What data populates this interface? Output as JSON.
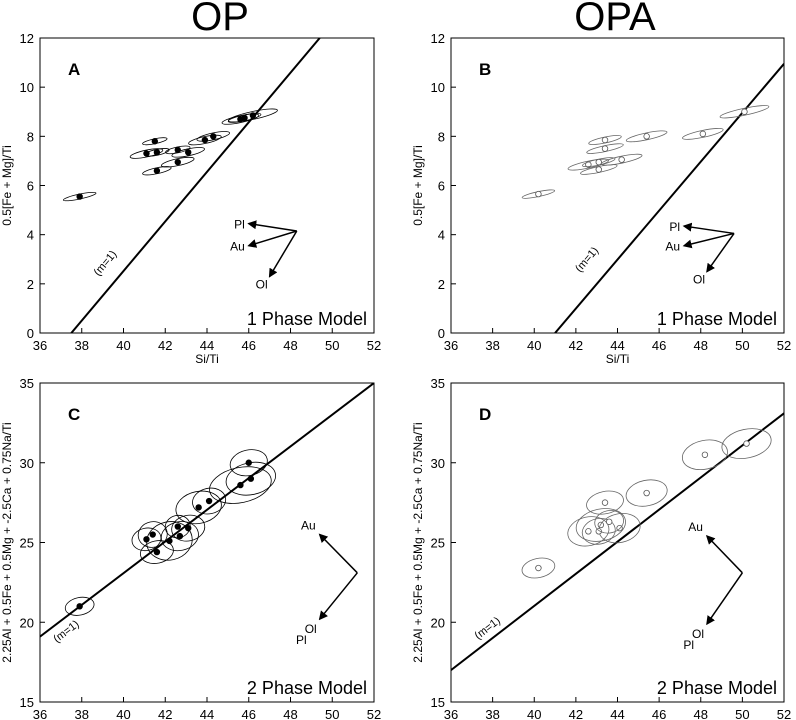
{
  "titles": {
    "left": "OP",
    "right": "OPA"
  },
  "chart_data": [
    {
      "id": "A",
      "type": "scatter",
      "label": "A",
      "model_label": "1 Phase Model",
      "xlabel": "Si/Ti",
      "ylabel": "0.5[Fe + Mg]/Ti",
      "xlim": [
        36,
        52
      ],
      "ylim": [
        0,
        12
      ],
      "xticks": [
        36,
        38,
        40,
        42,
        44,
        46,
        48,
        50,
        52
      ],
      "yticks": [
        0,
        2,
        4,
        6,
        8,
        10,
        12
      ],
      "filled": true,
      "points": [
        {
          "x": 37.9,
          "y": 5.55,
          "sx": 0.8,
          "sy": 0.1
        },
        {
          "x": 41.5,
          "y": 7.8,
          "sx": 0.6,
          "sy": 0.1
        },
        {
          "x": 41.1,
          "y": 7.3,
          "sx": 0.8,
          "sy": 0.14
        },
        {
          "x": 41.6,
          "y": 7.35,
          "sx": 0.6,
          "sy": 0.12
        },
        {
          "x": 42.6,
          "y": 7.45,
          "sx": 0.6,
          "sy": 0.12
        },
        {
          "x": 43.1,
          "y": 7.35,
          "sx": 0.8,
          "sy": 0.14
        },
        {
          "x": 42.6,
          "y": 6.95,
          "sx": 0.8,
          "sy": 0.14
        },
        {
          "x": 41.6,
          "y": 6.6,
          "sx": 0.7,
          "sy": 0.12
        },
        {
          "x": 43.9,
          "y": 7.85,
          "sx": 0.8,
          "sy": 0.14
        },
        {
          "x": 44.3,
          "y": 8.0,
          "sx": 0.8,
          "sy": 0.14
        },
        {
          "x": 45.6,
          "y": 8.7,
          "sx": 0.9,
          "sy": 0.14
        },
        {
          "x": 45.8,
          "y": 8.75,
          "sx": 0.8,
          "sy": 0.12
        },
        {
          "x": 46.2,
          "y": 8.85,
          "sx": 1.2,
          "sy": 0.16
        }
      ],
      "line": {
        "x": [
          37.5,
          49.4
        ],
        "y": [
          0,
          12
        ],
        "label": "(m=1)",
        "label_x": 38.8,
        "label_y": 2.3
      },
      "vectors": {
        "origin": {
          "x": 48.3,
          "y": 4.15
        },
        "items": [
          {
            "label": "Pl",
            "to": {
              "x": 46.0,
              "y": 4.45
            }
          },
          {
            "label": "Au",
            "to": {
              "x": 46.0,
              "y": 3.55
            }
          },
          {
            "label": "Ol",
            "to": {
              "x": 47.0,
              "y": 2.3
            }
          }
        ]
      }
    },
    {
      "id": "B",
      "type": "scatter",
      "label": "B",
      "model_label": "1 Phase Model",
      "xlabel": "Si/Ti",
      "ylabel": "0.5[Fe + Mg]/Ti",
      "xlim": [
        36,
        52
      ],
      "ylim": [
        0,
        12
      ],
      "xticks": [
        36,
        38,
        40,
        42,
        44,
        46,
        48,
        50,
        52
      ],
      "yticks": [
        0,
        2,
        4,
        6,
        8,
        10,
        12
      ],
      "filled": false,
      "points": [
        {
          "x": 40.2,
          "y": 5.65,
          "sx": 0.8,
          "sy": 0.1
        },
        {
          "x": 43.4,
          "y": 7.85,
          "sx": 0.8,
          "sy": 0.12
        },
        {
          "x": 45.4,
          "y": 8.0,
          "sx": 1.0,
          "sy": 0.14
        },
        {
          "x": 43.4,
          "y": 7.5,
          "sx": 0.9,
          "sy": 0.12
        },
        {
          "x": 42.6,
          "y": 6.85,
          "sx": 1.0,
          "sy": 0.14
        },
        {
          "x": 43.1,
          "y": 6.95,
          "sx": 0.8,
          "sy": 0.12
        },
        {
          "x": 44.2,
          "y": 7.05,
          "sx": 1.0,
          "sy": 0.14
        },
        {
          "x": 43.1,
          "y": 6.65,
          "sx": 0.9,
          "sy": 0.12
        },
        {
          "x": 48.1,
          "y": 8.1,
          "sx": 1.0,
          "sy": 0.14
        },
        {
          "x": 50.1,
          "y": 9.0,
          "sx": 1.2,
          "sy": 0.14
        }
      ],
      "line": {
        "x": [
          41.0,
          52.0
        ],
        "y": [
          0,
          10.95
        ],
        "label": "(m=1)",
        "label_x": 42.2,
        "label_y": 2.45
      },
      "vectors": {
        "origin": {
          "x": 49.6,
          "y": 4.05
        },
        "items": [
          {
            "label": "Pl",
            "to": {
              "x": 47.2,
              "y": 4.35
            }
          },
          {
            "label": "Au",
            "to": {
              "x": 47.2,
              "y": 3.55
            }
          },
          {
            "label": "Ol",
            "to": {
              "x": 48.3,
              "y": 2.5
            }
          }
        ]
      }
    },
    {
      "id": "C",
      "type": "scatter",
      "label": "C",
      "model_label": "2 Phase Model",
      "xlabel": "Si/Ti",
      "ylabel": "2.25Al + 0.5Fe + 0.5Mg + -2.5Ca + 0.75Na/Ti",
      "xlim": [
        36,
        52
      ],
      "ylim": [
        15,
        35
      ],
      "xticks": [
        36,
        38,
        40,
        42,
        44,
        46,
        48,
        50,
        52
      ],
      "yticks": [
        15,
        20,
        25,
        30,
        35
      ],
      "filled": true,
      "points": [
        {
          "x": 37.9,
          "y": 21.0,
          "sx": 0.7,
          "sy": 0.55
        },
        {
          "x": 41.1,
          "y": 25.2,
          "sx": 0.7,
          "sy": 0.7
        },
        {
          "x": 41.4,
          "y": 25.5,
          "sx": 0.7,
          "sy": 0.8
        },
        {
          "x": 42.2,
          "y": 25.1,
          "sx": 1.1,
          "sy": 1.2
        },
        {
          "x": 42.6,
          "y": 26.0,
          "sx": 0.6,
          "sy": 0.7
        },
        {
          "x": 41.6,
          "y": 24.4,
          "sx": 0.8,
          "sy": 0.7
        },
        {
          "x": 42.7,
          "y": 25.4,
          "sx": 0.9,
          "sy": 0.9
        },
        {
          "x": 43.1,
          "y": 25.9,
          "sx": 0.8,
          "sy": 0.8
        },
        {
          "x": 43.6,
          "y": 27.2,
          "sx": 1.1,
          "sy": 1.0
        },
        {
          "x": 44.1,
          "y": 27.6,
          "sx": 0.8,
          "sy": 0.8
        },
        {
          "x": 45.6,
          "y": 28.6,
          "sx": 1.5,
          "sy": 1.1
        },
        {
          "x": 46.1,
          "y": 29.0,
          "sx": 1.2,
          "sy": 1.0
        },
        {
          "x": 46.0,
          "y": 30.0,
          "sx": 0.9,
          "sy": 0.8
        }
      ],
      "line": {
        "x": [
          36.0,
          52.0
        ],
        "y": [
          19.1,
          35.0
        ],
        "label": "(m=1)",
        "label_x": 36.8,
        "label_y": 18.7
      },
      "vectors": {
        "origin": {
          "x": 51.2,
          "y": 23.1
        },
        "items": [
          {
            "label": "Au",
            "to": {
              "x": 49.4,
              "y": 25.5
            }
          },
          {
            "label": "Ol",
            "to": {
              "x": 49.4,
              "y": 20.2
            }
          }
        ],
        "extra_label": "Pl"
      }
    },
    {
      "id": "D",
      "type": "scatter",
      "label": "D",
      "model_label": "2 Phase Model",
      "xlabel": "Si/Ti",
      "ylabel": "2.25Al + 0.5Fe + 0.5Mg + -2.5Ca + 0.75Na/Ti",
      "xlim": [
        36,
        52
      ],
      "ylim": [
        15,
        35
      ],
      "xticks": [
        36,
        38,
        40,
        42,
        44,
        46,
        48,
        50,
        52
      ],
      "yticks": [
        15,
        20,
        25,
        30,
        35
      ],
      "filled": false,
      "points": [
        {
          "x": 40.2,
          "y": 23.4,
          "sx": 0.8,
          "sy": 0.6
        },
        {
          "x": 43.4,
          "y": 27.5,
          "sx": 0.9,
          "sy": 0.7
        },
        {
          "x": 45.4,
          "y": 28.1,
          "sx": 1.0,
          "sy": 0.8
        },
        {
          "x": 42.6,
          "y": 25.7,
          "sx": 1.0,
          "sy": 0.9
        },
        {
          "x": 43.2,
          "y": 26.1,
          "sx": 1.2,
          "sy": 1.0
        },
        {
          "x": 44.1,
          "y": 25.9,
          "sx": 1.0,
          "sy": 0.9
        },
        {
          "x": 43.1,
          "y": 25.7,
          "sx": 0.8,
          "sy": 0.8
        },
        {
          "x": 43.6,
          "y": 26.3,
          "sx": 0.7,
          "sy": 0.7
        },
        {
          "x": 48.2,
          "y": 30.5,
          "sx": 1.1,
          "sy": 0.9
        },
        {
          "x": 50.2,
          "y": 31.2,
          "sx": 1.2,
          "sy": 0.9
        }
      ],
      "line": {
        "x": [
          36.0,
          52.0
        ],
        "y": [
          17.0,
          33.1
        ],
        "label": "(m=1)",
        "label_x": 37.3,
        "label_y": 18.9
      },
      "vectors": {
        "origin": {
          "x": 50.0,
          "y": 23.1
        },
        "items": [
          {
            "label": "Au",
            "to": {
              "x": 48.3,
              "y": 25.4
            }
          },
          {
            "label": "Ol",
            "to": {
              "x": 48.3,
              "y": 19.9
            }
          }
        ],
        "extra_label": "Pl"
      }
    }
  ]
}
